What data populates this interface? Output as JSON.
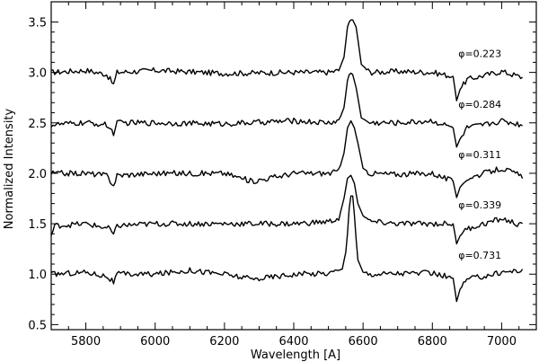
{
  "chart_data": {
    "type": "line",
    "title": "",
    "xlabel": "Wavelength   [A]",
    "ylabel": "Normalized Intensity",
    "xlim": [
      5700,
      7100
    ],
    "ylim": [
      0.45,
      3.7
    ],
    "x_ticks": [
      5800,
      6000,
      6200,
      6400,
      6600,
      6800,
      7000
    ],
    "y_ticks": [
      0.5,
      1.0,
      1.5,
      2.0,
      2.5,
      3.0,
      3.5
    ],
    "x_tick_labels": [
      "5800",
      "6000",
      "6200",
      "6400",
      "6600",
      "6800",
      "7000"
    ],
    "y_tick_labels": [
      "0.5",
      "1.0",
      "1.5",
      "2.0",
      "2.5",
      "3.0",
      "3.5"
    ],
    "grid": false,
    "color": "#000000",
    "series": [
      {
        "label": "φ=0.223",
        "baseline": 3.0,
        "x": [
          5700,
          5800,
          5860,
          5880,
          5890,
          6000,
          6200,
          6400,
          6500,
          6530,
          6545,
          6555,
          6562,
          6570,
          6580,
          6595,
          6620,
          6700,
          6800,
          6860,
          6870,
          6880,
          6900,
          6950,
          7000,
          7060
        ],
        "y": [
          3.0,
          3.02,
          2.98,
          2.88,
          3.0,
          3.02,
          2.99,
          3.0,
          3.0,
          3.02,
          3.15,
          3.45,
          3.52,
          3.52,
          3.45,
          3.08,
          3.0,
          3.01,
          3.0,
          2.96,
          2.72,
          2.83,
          2.93,
          2.97,
          3.01,
          2.95
        ]
      },
      {
        "label": "φ=0.284",
        "baseline": 2.5,
        "x": [
          5700,
          5800,
          5860,
          5880,
          5890,
          6000,
          6200,
          6400,
          6500,
          6530,
          6545,
          6555,
          6562,
          6570,
          6580,
          6595,
          6620,
          6700,
          6800,
          6860,
          6870,
          6880,
          6900,
          6950,
          7000,
          7060
        ],
        "y": [
          2.48,
          2.5,
          2.48,
          2.4,
          2.5,
          2.5,
          2.49,
          2.52,
          2.5,
          2.52,
          2.65,
          2.92,
          3.0,
          2.98,
          2.85,
          2.55,
          2.5,
          2.5,
          2.52,
          2.45,
          2.26,
          2.34,
          2.45,
          2.48,
          2.52,
          2.48
        ]
      },
      {
        "label": "φ=0.311",
        "baseline": 2.0,
        "x": [
          5700,
          5800,
          5860,
          5880,
          5890,
          6000,
          6200,
          6280,
          6400,
          6500,
          6530,
          6545,
          6555,
          6565,
          6575,
          6585,
          6600,
          6620,
          6700,
          6800,
          6860,
          6870,
          6880,
          6900,
          6950,
          7000,
          7060
        ],
        "y": [
          2.0,
          2.0,
          1.98,
          1.88,
          1.98,
          2.0,
          2.0,
          1.92,
          2.0,
          2.0,
          2.02,
          2.2,
          2.45,
          2.52,
          2.45,
          2.3,
          2.05,
          2.0,
          1.99,
          2.0,
          1.92,
          1.76,
          1.86,
          1.95,
          2.0,
          2.05,
          1.97
        ]
      },
      {
        "label": "φ=0.339",
        "baseline": 1.5,
        "x": [
          5700,
          5710,
          5800,
          5870,
          5880,
          5890,
          6000,
          6200,
          6400,
          6500,
          6530,
          6545,
          6555,
          6565,
          6575,
          6585,
          6600,
          6620,
          6700,
          6800,
          6860,
          6870,
          6880,
          6900,
          6950,
          7000,
          7060
        ],
        "y": [
          1.38,
          1.48,
          1.5,
          1.45,
          1.38,
          1.48,
          1.5,
          1.5,
          1.5,
          1.52,
          1.55,
          1.75,
          1.95,
          1.98,
          1.9,
          1.7,
          1.58,
          1.52,
          1.5,
          1.5,
          1.5,
          1.3,
          1.38,
          1.45,
          1.5,
          1.55,
          1.48
        ]
      },
      {
        "label": "φ=0.731",
        "baseline": 1.0,
        "x": [
          5700,
          5800,
          5860,
          5880,
          5890,
          6000,
          6100,
          6200,
          6280,
          6400,
          6500,
          6540,
          6552,
          6560,
          6568,
          6576,
          6584,
          6600,
          6620,
          6700,
          6800,
          6860,
          6870,
          6880,
          6900,
          6950,
          7000,
          7060
        ],
        "y": [
          1.0,
          1.02,
          0.98,
          0.92,
          1.0,
          1.0,
          1.04,
          1.0,
          0.95,
          1.0,
          1.01,
          1.05,
          1.25,
          1.65,
          1.85,
          1.55,
          1.15,
          1.02,
          1.0,
          1.01,
          1.01,
          0.96,
          0.73,
          0.85,
          0.95,
          0.98,
          1.02,
          1.04
        ]
      }
    ]
  }
}
